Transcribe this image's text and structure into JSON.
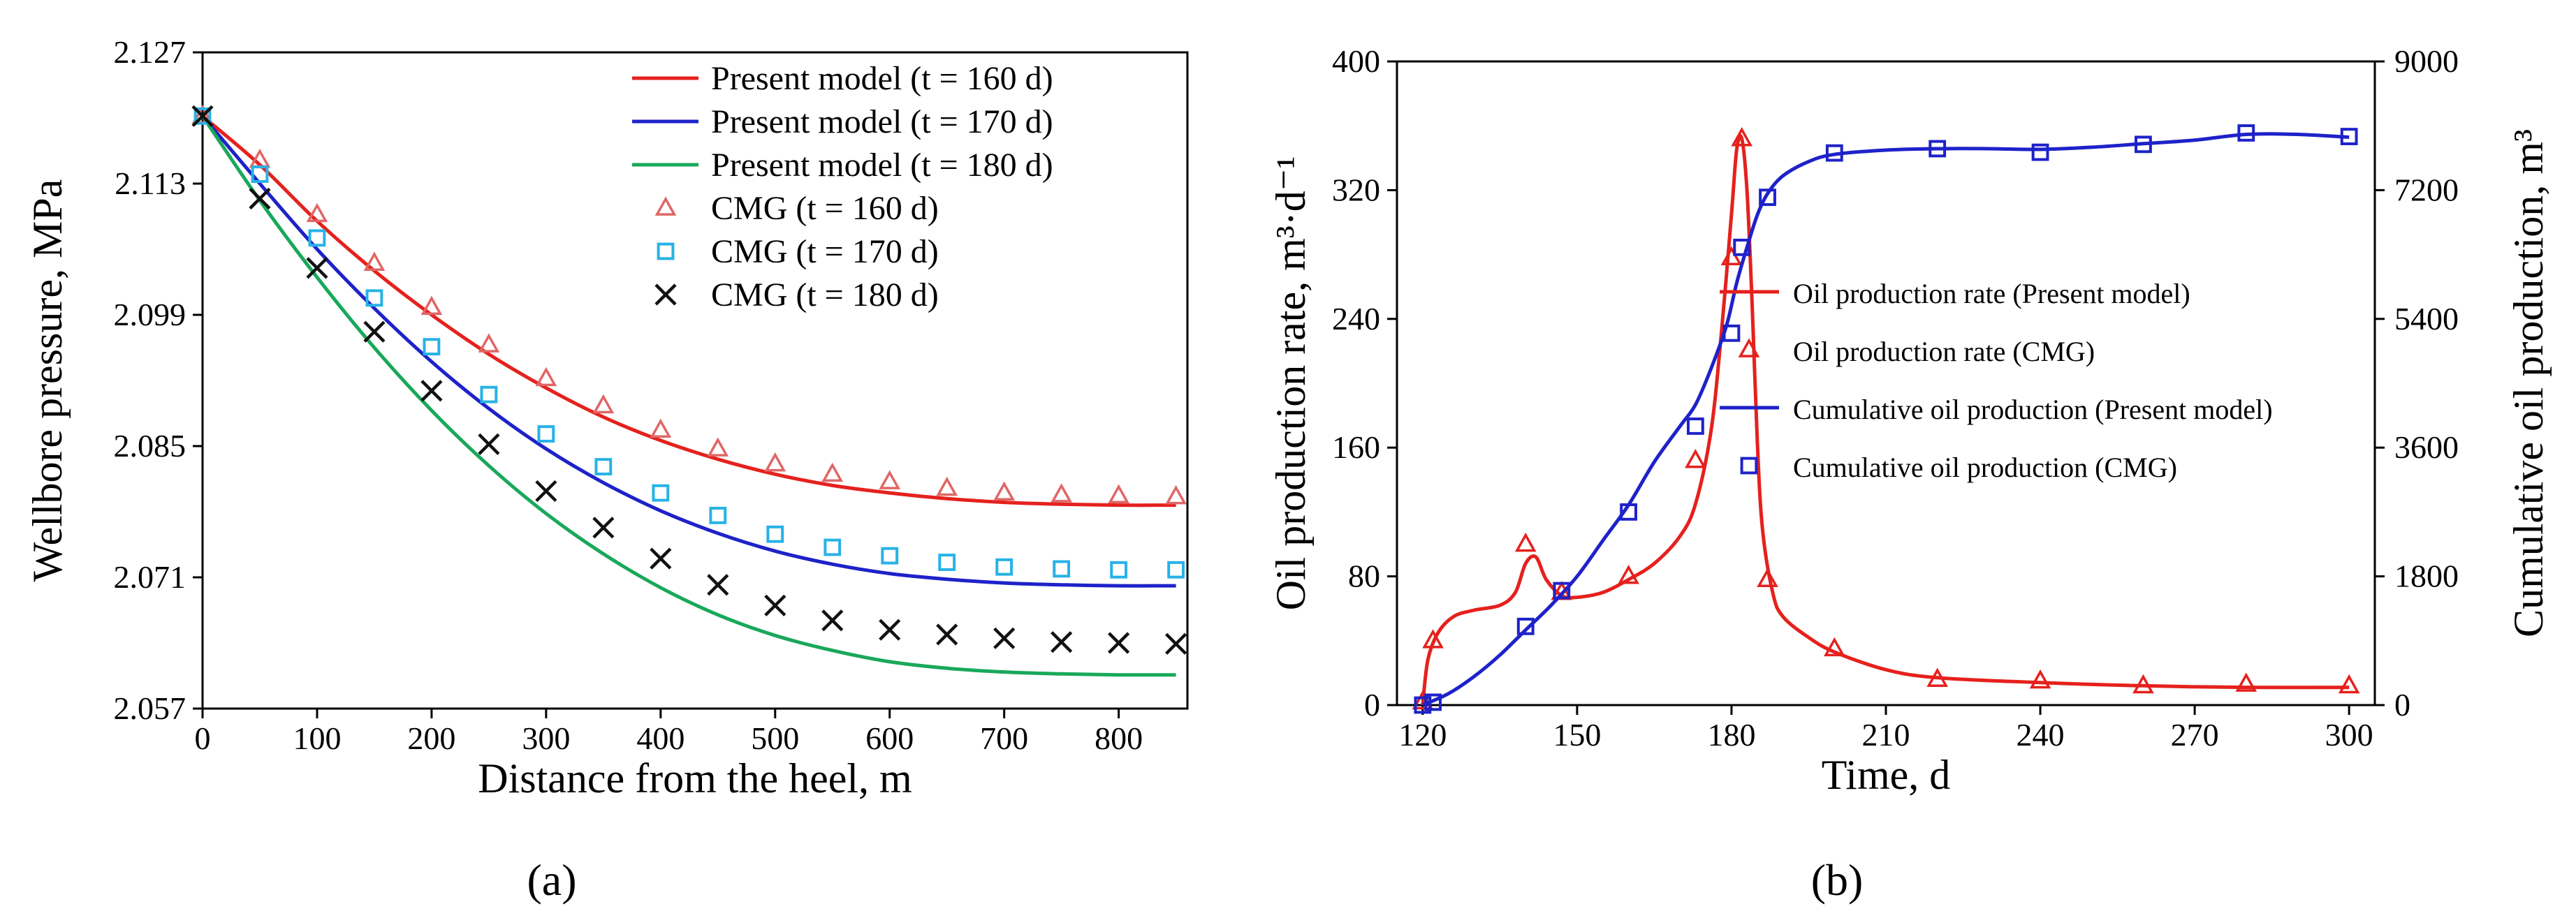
{
  "figure": {
    "panel_labels": [
      "(a)",
      "(b)"
    ]
  },
  "chart_data": [
    {
      "type": "line",
      "panel": "(a)",
      "title": "",
      "xlabel": "Distance from the heel, m",
      "ylabel": "Wellbore pressure, MPa",
      "xlim": [
        0,
        860
      ],
      "ylim": [
        2.057,
        2.127
      ],
      "xticks": [
        0,
        100,
        200,
        300,
        400,
        500,
        600,
        700,
        800
      ],
      "yticks": [
        "2.057",
        "2.071",
        "2.085",
        "2.099",
        "2.113",
        "2.127"
      ],
      "legend_position": "top-right",
      "series": [
        {
          "name": "Present model (t = 160 d)",
          "kind": "line",
          "color": "#e5211d",
          "x": [
            0,
            50,
            100,
            150,
            200,
            250,
            300,
            350,
            400,
            450,
            500,
            550,
            600,
            650,
            700,
            750,
            800,
            850
          ],
          "y": [
            2.1202,
            2.115,
            2.109,
            2.1037,
            2.099,
            2.0948,
            2.0912,
            2.0881,
            2.0856,
            2.0836,
            2.082,
            2.0808,
            2.08,
            2.0794,
            2.079,
            2.0788,
            2.0787,
            2.0787
          ]
        },
        {
          "name": "Present model (t = 170 d)",
          "kind": "line",
          "color": "#1e22c9",
          "x": [
            0,
            50,
            100,
            150,
            200,
            250,
            300,
            350,
            400,
            450,
            500,
            550,
            600,
            650,
            700,
            750,
            800,
            850
          ],
          "y": [
            2.1202,
            2.113,
            2.106,
            2.0997,
            2.094,
            2.089,
            2.0847,
            2.0811,
            2.0781,
            2.0757,
            2.0738,
            2.0724,
            2.0714,
            2.0708,
            2.0704,
            2.0702,
            2.0701,
            2.0701
          ]
        },
        {
          "name": "Present model (t = 180 d)",
          "kind": "line",
          "color": "#19a85a",
          "x": [
            0,
            50,
            100,
            150,
            200,
            250,
            300,
            350,
            400,
            450,
            500,
            550,
            600,
            650,
            700,
            750,
            800,
            850
          ],
          "y": [
            2.1202,
            2.1112,
            2.103,
            2.0955,
            2.0888,
            2.0829,
            2.0778,
            2.0735,
            2.0699,
            2.067,
            2.0648,
            2.0632,
            2.062,
            2.0613,
            2.0609,
            2.0607,
            2.0606,
            2.0606
          ]
        },
        {
          "name": "CMG (t = 160 d)",
          "kind": "marker",
          "marker": "triangle",
          "color": "#e06666",
          "x": [
            0,
            50,
            100,
            150,
            200,
            250,
            300,
            350,
            400,
            450,
            500,
            550,
            600,
            650,
            700,
            750,
            800,
            850
          ],
          "y": [
            2.1202,
            2.1155,
            2.1097,
            2.1045,
            2.0998,
            2.0958,
            2.0922,
            2.0893,
            2.0867,
            2.0847,
            2.0831,
            2.082,
            2.0812,
            2.0805,
            2.08,
            2.0798,
            2.0797,
            2.0796
          ]
        },
        {
          "name": "CMG (t = 170 d)",
          "kind": "marker",
          "marker": "square",
          "color": "#27b2e6",
          "x": [
            0,
            50,
            100,
            150,
            200,
            250,
            300,
            350,
            400,
            450,
            500,
            550,
            600,
            650,
            700,
            750,
            800,
            850
          ],
          "y": [
            2.1202,
            2.114,
            2.1072,
            2.1008,
            2.0956,
            2.0905,
            2.0863,
            2.0828,
            2.08,
            2.0776,
            2.0756,
            2.0742,
            2.0733,
            2.0726,
            2.0721,
            2.0719,
            2.0718,
            2.0718
          ]
        },
        {
          "name": "CMG (t = 180 d)",
          "kind": "marker",
          "marker": "x",
          "color": "#111111",
          "x": [
            0,
            50,
            100,
            150,
            200,
            250,
            300,
            350,
            400,
            450,
            500,
            550,
            600,
            650,
            700,
            750,
            800,
            850
          ],
          "y": [
            2.1202,
            2.1114,
            2.104,
            2.0972,
            2.0909,
            2.0852,
            2.0802,
            2.0763,
            2.073,
            2.0702,
            2.068,
            2.0664,
            2.0654,
            2.0649,
            2.0645,
            2.0641,
            2.064,
            2.0639
          ]
        }
      ]
    },
    {
      "type": "line",
      "panel": "(b)",
      "title": "",
      "xlabel": "Time, d",
      "ylabel": "Oil production rate, m³·d⁻¹",
      "y2label": "Cumulative oil production, m³",
      "xlim": [
        115,
        305
      ],
      "ylim": [
        0,
        400
      ],
      "y2lim": [
        0,
        9000
      ],
      "xticks": [
        120,
        150,
        180,
        210,
        240,
        270,
        300
      ],
      "yticks": [
        0,
        80,
        160,
        240,
        320,
        400
      ],
      "y2ticks": [
        0,
        1800,
        3600,
        5400,
        7200,
        9000
      ],
      "legend_position": "center-right",
      "series": [
        {
          "name": "Oil production rate (Present model)",
          "kind": "line",
          "axis": "left",
          "color": "#e5211d",
          "x": [
            120,
            121,
            123,
            126,
            130,
            135,
            138,
            140,
            142,
            144,
            147,
            150,
            155,
            160,
            165,
            170,
            173,
            176,
            178,
            180,
            181,
            182,
            183,
            184,
            185,
            186,
            188,
            190,
            195,
            200,
            210,
            220,
            240,
            260,
            280,
            300
          ],
          "y": [
            0,
            28,
            45,
            55,
            59,
            62,
            70,
            88,
            92,
            78,
            68,
            67,
            70,
            78,
            88,
            105,
            125,
            170,
            230,
            305,
            345,
            352,
            320,
            250,
            165,
            110,
            70,
            55,
            42,
            33,
            22,
            17,
            14,
            12,
            11,
            11
          ]
        },
        {
          "name": "Oil production rate (CMG)",
          "kind": "marker",
          "axis": "left",
          "marker": "triangle",
          "color": "#e5211d",
          "x": [
            120,
            122,
            140,
            147,
            160,
            173,
            180,
            182,
            187,
            200,
            220,
            240,
            260,
            280,
            300
          ],
          "y": [
            2,
            40,
            100,
            70,
            80,
            152,
            278,
            352,
            78,
            35,
            16,
            15,
            12,
            13,
            12
          ]
        },
        {
          "name": "Cumulative oil production (Present model)",
          "kind": "line",
          "axis": "right",
          "color": "#1e22c9",
          "x": [
            120,
            125,
            130,
            135,
            140,
            145,
            150,
            155,
            160,
            165,
            170,
            173,
            176,
            179,
            181,
            183,
            185,
            187,
            190,
            195,
            200,
            210,
            220,
            230,
            240,
            250,
            260,
            270,
            280,
            290,
            300
          ],
          "y": [
            0,
            160,
            400,
            700,
            1050,
            1400,
            1800,
            2300,
            2800,
            3400,
            3900,
            4200,
            4700,
            5300,
            5900,
            6400,
            6850,
            7150,
            7400,
            7600,
            7700,
            7760,
            7780,
            7780,
            7770,
            7800,
            7850,
            7900,
            7980,
            7980,
            7940
          ]
        },
        {
          "name": "Cumulative oil production (CMG)",
          "kind": "marker",
          "axis": "right",
          "marker": "square",
          "color": "#1e22c9",
          "x": [
            120,
            122,
            140,
            147,
            160,
            173,
            180,
            182,
            187,
            200,
            220,
            240,
            260,
            280,
            300
          ],
          "y": [
            0,
            40,
            1100,
            1600,
            2700,
            3900,
            5200,
            6400,
            7100,
            7720,
            7780,
            7730,
            7840,
            8000,
            7950
          ]
        }
      ]
    }
  ]
}
